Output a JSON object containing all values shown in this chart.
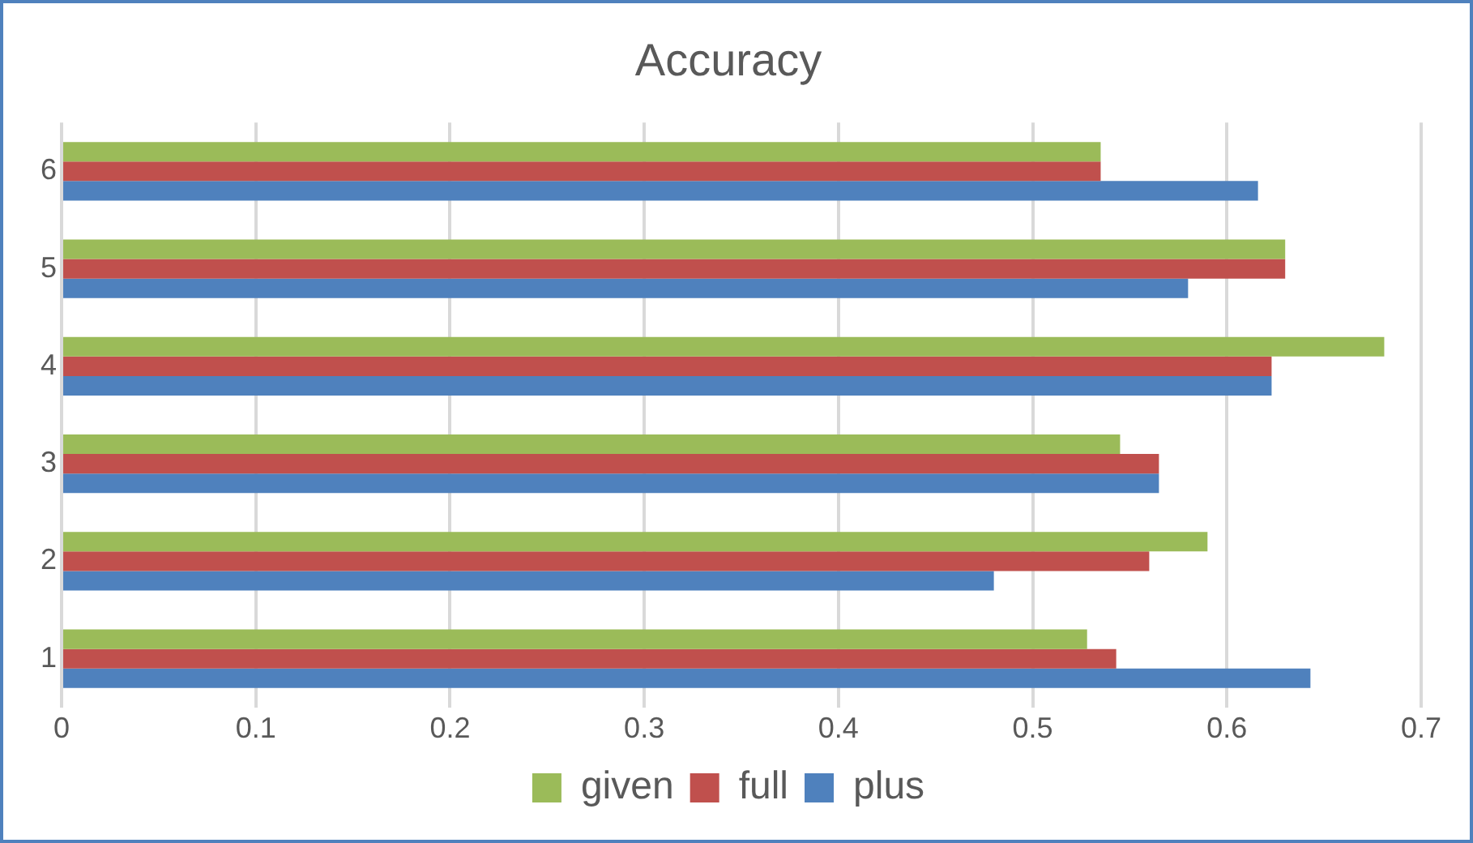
{
  "chart_data": {
    "type": "bar",
    "orientation": "horizontal",
    "title": "Accuracy",
    "categories": [
      "6",
      "5",
      "4",
      "3",
      "2",
      "1"
    ],
    "series": [
      {
        "name": "given",
        "color": "#9bbb59",
        "values": [
          0.535,
          0.63,
          0.681,
          0.545,
          0.59,
          0.528
        ]
      },
      {
        "name": "full",
        "color": "#c0504d",
        "values": [
          0.535,
          0.63,
          0.623,
          0.565,
          0.56,
          0.543
        ]
      },
      {
        "name": "plus",
        "color": "#4f81bd",
        "values": [
          0.616,
          0.58,
          0.623,
          0.565,
          0.48,
          0.643
        ]
      }
    ],
    "xlim": [
      0,
      0.7
    ],
    "xticks": [
      0,
      0.1,
      0.2,
      0.3,
      0.4,
      0.5,
      0.6,
      0.7
    ],
    "grid": "x",
    "legend": "bottom"
  }
}
